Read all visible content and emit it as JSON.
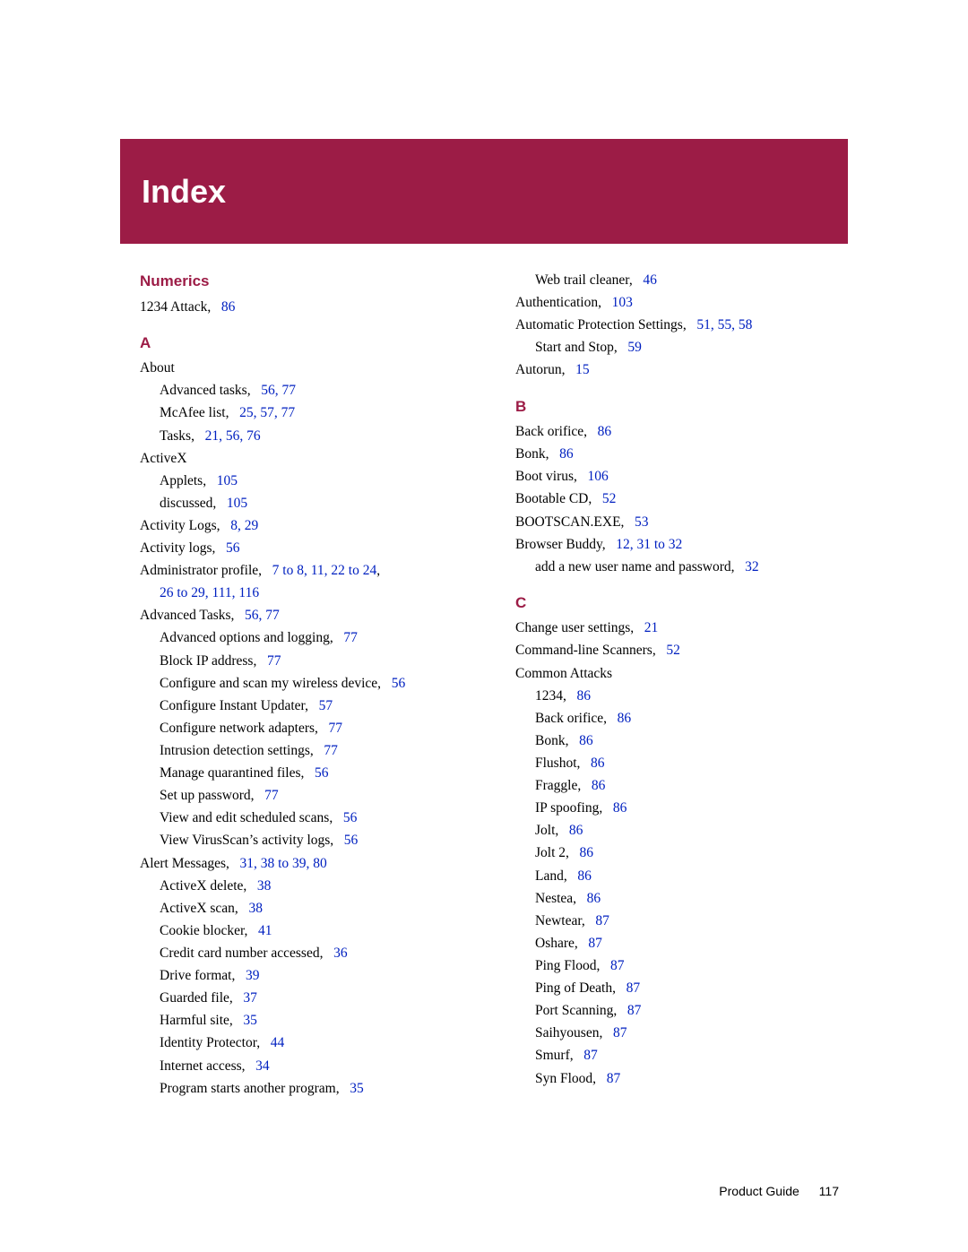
{
  "header": {
    "title": "Index"
  },
  "footer": {
    "label": "Product Guide",
    "page": "117"
  },
  "colors": {
    "brand": "#9c1c46",
    "link": "#0020c0",
    "text": "#000000",
    "bg": "#ffffff"
  },
  "left": {
    "sec_numerics": "Numerics",
    "numerics_1234": "1234 Attack,",
    "numerics_1234_pg": "86",
    "sec_A": "A",
    "about": "About",
    "adv_tasks": "Advanced tasks,",
    "adv_tasks_pg": "56, 77",
    "mcafee_list": "McAfee list,",
    "mcafee_list_pg": "25, 57, 77",
    "tasks": "Tasks,",
    "tasks_pg": "21, 56, 76",
    "activex": "ActiveX",
    "applets": "Applets,",
    "applets_pg": "105",
    "discussed": "discussed,",
    "discussed_pg": "105",
    "activity_logs_u": "Activity Logs,",
    "activity_logs_u_pg": "8, 29",
    "activity_logs_l": "Activity logs,",
    "activity_logs_l_pg": "56",
    "admin_profile": "Administrator profile,",
    "admin_profile_pg1": "7 to 8, 11, 22 to 24",
    "admin_profile_pg2": "26 to 29, 111, 116",
    "adv_tasks2": "Advanced Tasks,",
    "adv_tasks2_pg": "56, 77",
    "adv_opt": "Advanced options and logging,",
    "adv_opt_pg": "77",
    "block_ip": "Block IP address,",
    "block_ip_pg": "77",
    "conf_wireless": "Configure and scan my wireless device,",
    "conf_wireless_pg": "56",
    "conf_instant": "Configure Instant Updater,",
    "conf_instant_pg": "57",
    "conf_net": "Configure network adapters,",
    "conf_net_pg": "77",
    "intrusion": "Intrusion detection settings,",
    "intrusion_pg": "77",
    "manage_q": "Manage quarantined files,",
    "manage_q_pg": "56",
    "setup_pw": "Set up password,",
    "setup_pw_pg": "77",
    "view_sched": "View and edit scheduled scans,",
    "view_sched_pg": "56",
    "view_vs": "View VirusScan’s activity logs,",
    "view_vs_pg": "56",
    "alert_msg": "Alert Messages,",
    "alert_msg_pg": "31, 38 to 39, 80",
    "ax_delete": "ActiveX delete,",
    "ax_delete_pg": "38",
    "ax_scan": "ActiveX scan,",
    "ax_scan_pg": "38",
    "cookie": "Cookie blocker,",
    "cookie_pg": "41",
    "cc": "Credit card number accessed,",
    "cc_pg": "36",
    "drive_fmt": "Drive format,",
    "drive_fmt_pg": "39",
    "guarded": "Guarded file,",
    "guarded_pg": "37",
    "harmful": "Harmful site,",
    "harmful_pg": "35",
    "identity": "Identity Protector,",
    "identity_pg": "44",
    "inet": "Internet access,",
    "inet_pg": "34",
    "prog_starts": "Program starts another program,",
    "prog_starts_pg": "35"
  },
  "right": {
    "web_trail": "Web trail cleaner,",
    "web_trail_pg": "46",
    "auth": "Authentication,",
    "auth_pg": "103",
    "auto_prot": "Automatic Protection Settings,",
    "auto_prot_pg": "51, 55, 58",
    "start_stop": "Start and Stop,",
    "start_stop_pg": "59",
    "autorun": "Autorun,",
    "autorun_pg": "15",
    "sec_B": "B",
    "back_orifice": "Back orifice,",
    "back_orifice_pg": "86",
    "bonk": "Bonk,",
    "bonk_pg": "86",
    "boot_virus": "Boot virus,",
    "boot_virus_pg": "106",
    "boot_cd": "Bootable CD,",
    "boot_cd_pg": "52",
    "bootscan": "BOOTSCAN.EXE,",
    "bootscan_pg": "53",
    "browser_buddy": "Browser Buddy,",
    "browser_buddy_pg": "12, 31 to 32",
    "add_user": "add a new user name and password,",
    "add_user_pg": "32",
    "sec_C": "C",
    "change_user": "Change user settings,",
    "change_user_pg": "21",
    "cmdline": "Command-line Scanners,",
    "cmdline_pg": "52",
    "common_attacks": "Common Attacks",
    "ca_1234": "1234,",
    "ca_1234_pg": "86",
    "ca_back": "Back orifice,",
    "ca_back_pg": "86",
    "ca_bonk": "Bonk,",
    "ca_bonk_pg": "86",
    "ca_flushot": "Flushot,",
    "ca_flushot_pg": "86",
    "ca_fraggle": "Fraggle,",
    "ca_fraggle_pg": "86",
    "ca_ipspoof": "IP spoofing,",
    "ca_ipspoof_pg": "86",
    "ca_jolt": "Jolt,",
    "ca_jolt_pg": "86",
    "ca_jolt2": "Jolt 2,",
    "ca_jolt2_pg": "86",
    "ca_land": "Land,",
    "ca_land_pg": "86",
    "ca_nestea": "Nestea,",
    "ca_nestea_pg": "86",
    "ca_newtear": "Newtear,",
    "ca_newtear_pg": "87",
    "ca_oshare": "Oshare,",
    "ca_oshare_pg": "87",
    "ca_pingflood": "Ping Flood,",
    "ca_pingflood_pg": "87",
    "ca_pod": "Ping of Death,",
    "ca_pod_pg": "87",
    "ca_portscan": "Port Scanning,",
    "ca_portscan_pg": "87",
    "ca_saihy": "Saihyousen,",
    "ca_saihy_pg": "87",
    "ca_smurf": "Smurf,",
    "ca_smurf_pg": "87",
    "ca_syn": "Syn Flood,",
    "ca_syn_pg": "87"
  }
}
